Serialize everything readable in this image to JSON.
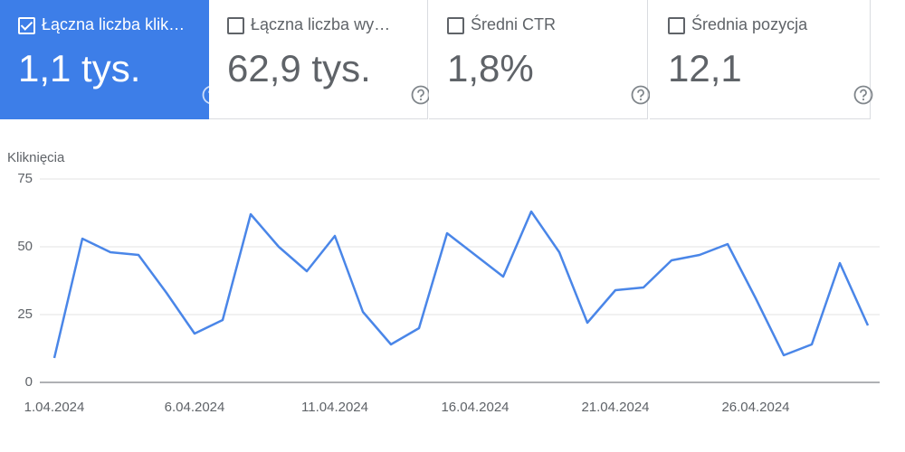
{
  "cards": [
    {
      "label": "Łączna liczba klik…",
      "value": "1,1 tys.",
      "selected": true
    },
    {
      "label": "Łączna liczba wy…",
      "value": "62,9 tys.",
      "selected": false
    },
    {
      "label": "Średni CTR",
      "value": "1,8%",
      "selected": false
    },
    {
      "label": "Średnia pozycja",
      "value": "12,1",
      "selected": false
    }
  ],
  "chart_data": {
    "type": "line",
    "y_label": "Kliknięcia",
    "color": "#4a86e8",
    "categories": [
      "1.04.2024",
      null,
      null,
      null,
      null,
      "6.04.2024",
      null,
      null,
      null,
      null,
      "11.04.2024",
      null,
      null,
      null,
      null,
      "16.04.2024",
      null,
      null,
      null,
      null,
      "21.04.2024",
      null,
      null,
      null,
      null,
      "26.04.2024",
      null,
      null,
      null,
      null
    ],
    "values": [
      9,
      53,
      48,
      47,
      33,
      18,
      23,
      62,
      50,
      41,
      54,
      26,
      14,
      20,
      55,
      47,
      39,
      63,
      48,
      22,
      34,
      35,
      45,
      47,
      51,
      31,
      10,
      14,
      44,
      21
    ],
    "ylim": [
      0,
      75
    ],
    "yticks": [
      0,
      25,
      50,
      75
    ],
    "grid": true
  }
}
